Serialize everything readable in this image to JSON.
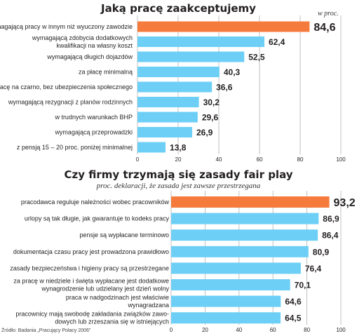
{
  "chart_data": [
    {
      "type": "bar",
      "orientation": "horizontal",
      "title": "Jaką pracę zaakceptujemy",
      "unit_label": "w proc.",
      "categories": [
        "wymagającą pracy w innym niż wyuczony zawodzie",
        "wymagającą zdobycia dodatkowych kwalifikacji na własny koszt",
        "wymagającą długich dojazdów",
        "za płacę minimalną",
        "pracę na czarno, bez ubezpieczenia społecznego",
        "wymagającą rezygnacji z planów rodzinnych",
        "w trudnych warunkach BHP",
        "wymagającą przeprowadzki",
        "z pensją 15 – 20 proc. poniżej minimalnej"
      ],
      "category_lines": [
        [
          "wymagającą pracy w innym niż wyuczony zawodzie"
        ],
        [
          "wymagającą zdobycia dodatkowych",
          "kwalifikacji na własny koszt"
        ],
        [
          "wymagającą długich dojazdów"
        ],
        [
          "za płacę minimalną"
        ],
        [
          "pracę na czarno, bez ubezpieczenia społecznego"
        ],
        [
          "wymagającą rezygnacji z planów rodzinnych"
        ],
        [
          "w trudnych warunkach BHP"
        ],
        [
          "wymagającą przeprowadzki"
        ],
        [
          "z pensją 15 – 20 proc. poniżej minimalnej"
        ]
      ],
      "values": [
        84.6,
        62.4,
        52.5,
        40.3,
        36.6,
        30.2,
        29.6,
        26.9,
        13.8
      ],
      "value_labels": [
        "84,6",
        "62,4",
        "52,5",
        "40,3",
        "36,6",
        "30,2",
        "29,6",
        "26,9",
        "13,8"
      ],
      "highlight_index": 0,
      "xlim": [
        0,
        100
      ],
      "xticks": [
        0,
        20,
        40,
        60,
        80,
        100
      ],
      "grid": true
    },
    {
      "type": "bar",
      "orientation": "horizontal",
      "title": "Czy firmy trzymają się zasady fair play",
      "subtitle": "proc. deklaracji, że zasada jest zawsze przestrzegana",
      "categories": [
        "pracodawca reguluje należności wobec pracowników",
        "urlopy są tak długie, jak gwarantuje to kodeks pracy",
        "pensje są wypłacane terminowo",
        "dokumentacja czasu pracy jest prowadzona prawidłowo",
        "zasady bezpieczeństwa i higieny pracy są przestrzegane",
        "za pracę w niedziele i święta wypłacane jest dodatkowe wynagrodzenie lub udzielany jest dzień wolny",
        "praca w nadgodzinach jest właściwie wynagradzana",
        "pracownicy mają swobodę zakładania związków zawodowych lub zrzeszania się w istniejących"
      ],
      "category_lines": [
        [
          "pracodawca reguluje należności wobec pracowników"
        ],
        [
          "urlopy są tak długie, jak gwarantuje to kodeks pracy"
        ],
        [
          "pensje są wypłacane terminowo"
        ],
        [
          "dokumentacja czasu pracy jest prowadzona prawidłowo"
        ],
        [
          "zasady bezpieczeństwa i higieny pracy są przestrzegane"
        ],
        [
          "za pracę w niedziele i święta wypłacane jest dodatkowe",
          "wynagrodzenie lub udzielany jest dzień wolny"
        ],
        [
          "praca w nadgodzinach jest właściwie",
          "wynagradzana"
        ],
        [
          "pracownicy mają swobodę zakładania związków zawo-",
          "dowych lub zrzeszania się w istniejących"
        ]
      ],
      "values": [
        93.2,
        86.9,
        86.4,
        80.9,
        76.4,
        70.1,
        64.6,
        64.5
      ],
      "value_labels": [
        "93,2",
        "86,9",
        "86,4",
        "80,9",
        "76,4",
        "70,1",
        "64,6",
        "64,5"
      ],
      "highlight_index": 0,
      "xlim": [
        0,
        100
      ],
      "xticks": [
        0,
        20,
        40,
        60,
        80,
        100
      ],
      "grid": true
    }
  ],
  "source": "Źródło: Badania „Pracujący Polacy 2006”",
  "colors": {
    "highlight": "#f47b3c",
    "bar": "#6dcff6",
    "grid": "#b0b0b0",
    "text": "#231f20"
  }
}
